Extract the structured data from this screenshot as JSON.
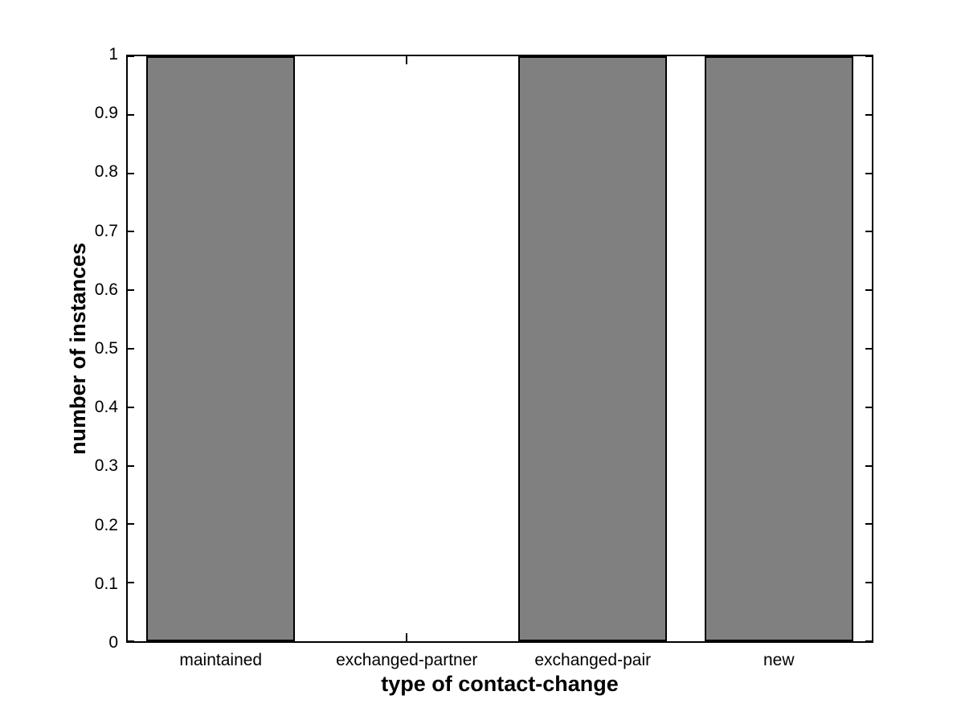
{
  "figure": {
    "background_color": "#ffffff",
    "axis_color": "#000000",
    "text_color": "#000000"
  },
  "chart_data": {
    "type": "bar",
    "title": "",
    "categories": [
      "maintained",
      "exchanged-partner",
      "exchanged-pair",
      "new"
    ],
    "values": [
      1,
      0,
      1,
      1
    ],
    "xlabel": "type of contact-change",
    "ylabel": "number of instances",
    "ylim": [
      0,
      1
    ],
    "xlim": [
      0.5,
      4.5
    ],
    "yticks": [
      0,
      0.1,
      0.2,
      0.3,
      0.4,
      0.5,
      0.6,
      0.7,
      0.8,
      0.9,
      1
    ],
    "ytick_labels": [
      "0",
      "0.1",
      "0.2",
      "0.3",
      "0.4",
      "0.5",
      "0.6",
      "0.7",
      "0.8",
      "0.9",
      "1"
    ],
    "bar_width_fraction": 0.8,
    "bar_color": "#808080",
    "bar_edge_color": "#000000",
    "grid": false,
    "legend_position": "none",
    "box": true,
    "tick_direction": "in"
  }
}
